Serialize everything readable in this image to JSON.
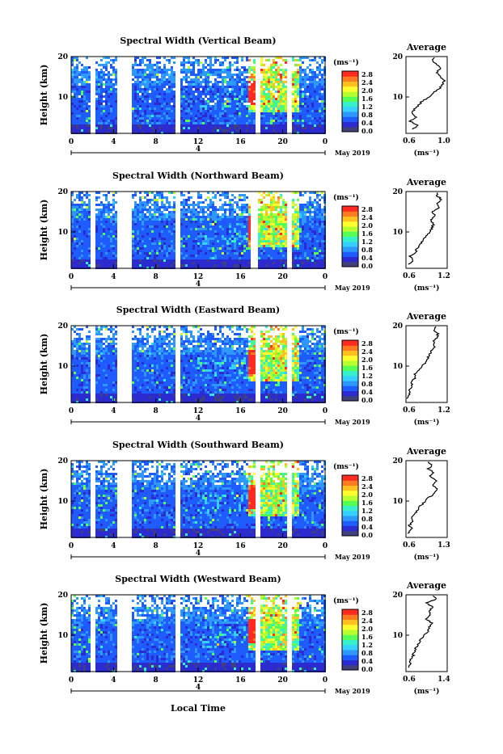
{
  "figure": {
    "xlabel": "Local Time",
    "date_label": "May 2019",
    "day_label": "4"
  },
  "colorbar": {
    "unit": "(ms⁻¹)",
    "ticks": [
      "0.0",
      "0.4",
      "0.8",
      "1.2",
      "1.6",
      "2.0",
      "2.4",
      "2.8"
    ],
    "colors": [
      "#40407a",
      "#2b2bd0",
      "#1e5cff",
      "#2e98ff",
      "#35d0ff",
      "#35f0c8",
      "#55ff55",
      "#b8ff30",
      "#ffff30",
      "#ffc020",
      "#ff7a20",
      "#ff2a20"
    ]
  },
  "chart_data": [
    {
      "type": "heatmap",
      "title": "Spectral Width (Vertical Beam)",
      "ylabel": "Height (km)",
      "xlim": [
        0,
        24
      ],
      "ylim": [
        1,
        20
      ],
      "x_ticks": [
        "0",
        "4",
        "8",
        "12",
        "16",
        "20",
        "0"
      ],
      "y_ticks": [
        "10",
        "20"
      ],
      "value_range": [
        0.0,
        3.0
      ],
      "gaps_hours": [
        2.0,
        4.7,
        5.4,
        10.0,
        17.6,
        20.7
      ],
      "avg_profile": {
        "title": "Average",
        "xlabel": "(ms⁻¹)",
        "xlim": [
          0.6,
          1.0
        ],
        "x_ticks": [
          "0.6",
          "1.0"
        ],
        "y_ticks": [
          "10",
          "20"
        ],
        "heights": [
          2,
          3,
          4,
          5,
          6,
          7,
          8,
          9,
          10,
          11,
          12,
          13,
          14,
          15,
          16,
          17,
          18,
          19,
          20
        ],
        "values": [
          0.66,
          0.72,
          0.64,
          0.7,
          0.66,
          0.68,
          0.72,
          0.76,
          0.82,
          0.86,
          0.92,
          0.95,
          0.97,
          0.94,
          0.9,
          0.93,
          0.9,
          0.86,
          0.88
        ]
      }
    },
    {
      "type": "heatmap",
      "title": "Spectral Width (Northward Beam)",
      "ylabel": "Height (km)",
      "xlim": [
        0,
        24
      ],
      "ylim": [
        1,
        20
      ],
      "x_ticks": [
        "0",
        "4",
        "8",
        "12",
        "16",
        "20",
        "0"
      ],
      "y_ticks": [
        "10",
        "20"
      ],
      "value_range": [
        0.0,
        3.0
      ],
      "gaps_hours": [
        2.0,
        4.7,
        5.4,
        10.0,
        17.3,
        20.7
      ],
      "avg_profile": {
        "title": "Average",
        "xlabel": "(ms⁻¹)",
        "xlim": [
          0.6,
          1.2
        ],
        "x_ticks": [
          "0.6",
          "1.2"
        ],
        "y_ticks": [
          "10",
          "20"
        ],
        "heights": [
          2,
          3,
          4,
          5,
          6,
          7,
          8,
          9,
          10,
          11,
          12,
          13,
          14,
          15,
          16,
          17,
          18,
          19,
          20
        ],
        "values": [
          0.64,
          0.7,
          0.66,
          0.74,
          0.76,
          0.82,
          0.84,
          0.9,
          0.95,
          0.98,
          1.0,
          0.96,
          1.02,
          0.98,
          1.08,
          1.04,
          1.12,
          1.05,
          1.08
        ]
      }
    },
    {
      "type": "heatmap",
      "title": "Spectral Width (Eastward Beam)",
      "ylabel": "Height (km)",
      "xlim": [
        0,
        24
      ],
      "ylim": [
        1,
        20
      ],
      "x_ticks": [
        "0",
        "4",
        "8",
        "12",
        "16",
        "20",
        "0"
      ],
      "y_ticks": [
        "10",
        "20"
      ],
      "value_range": [
        0.0,
        3.0
      ],
      "gaps_hours": [
        2.0,
        4.7,
        5.4,
        10.0,
        17.6,
        20.7
      ],
      "avg_profile": {
        "title": "Average",
        "xlabel": "(ms⁻¹)",
        "xlim": [
          0.6,
          1.2
        ],
        "x_ticks": [
          "0.6",
          "1.2"
        ],
        "y_ticks": [
          "10",
          "20"
        ],
        "heights": [
          2,
          3,
          4,
          5,
          6,
          7,
          8,
          9,
          10,
          11,
          12,
          13,
          14,
          15,
          16,
          17,
          18,
          19,
          20
        ],
        "values": [
          0.62,
          0.66,
          0.64,
          0.7,
          0.66,
          0.74,
          0.72,
          0.78,
          0.84,
          0.88,
          0.92,
          0.95,
          0.98,
          1.02,
          1.0,
          1.05,
          1.06,
          1.0,
          1.04
        ]
      }
    },
    {
      "type": "heatmap",
      "title": "Spectral Width (Southward Beam)",
      "ylabel": "Height (km)",
      "xlim": [
        0,
        24
      ],
      "ylim": [
        1,
        20
      ],
      "x_ticks": [
        "0",
        "4",
        "8",
        "12",
        "16",
        "20",
        "0"
      ],
      "y_ticks": [
        "10",
        "20"
      ],
      "value_range": [
        0.0,
        3.0
      ],
      "gaps_hours": [
        2.0,
        4.7,
        5.4,
        10.0,
        17.6,
        20.7
      ],
      "avg_profile": {
        "title": "Average",
        "xlabel": "(ms⁻¹)",
        "xlim": [
          0.6,
          1.3
        ],
        "x_ticks": [
          "0.6",
          "1.3"
        ],
        "y_ticks": [
          "10",
          "20"
        ],
        "heights": [
          2,
          3,
          4,
          5,
          6,
          7,
          8,
          9,
          10,
          11,
          12,
          13,
          14,
          15,
          16,
          17,
          18,
          19,
          20
        ],
        "values": [
          0.64,
          0.7,
          0.66,
          0.72,
          0.7,
          0.76,
          0.8,
          0.86,
          0.92,
          1.0,
          1.08,
          1.14,
          1.04,
          1.12,
          1.0,
          1.08,
          0.98,
          1.04,
          0.96
        ]
      }
    },
    {
      "type": "heatmap",
      "title": "Spectral Width (Westward Beam)",
      "ylabel": "Height (km)",
      "xlim": [
        0,
        24
      ],
      "ylim": [
        1,
        20
      ],
      "x_ticks": [
        "0",
        "4",
        "8",
        "12",
        "16",
        "20",
        "0"
      ],
      "y_ticks": [
        "10",
        "20"
      ],
      "value_range": [
        0.0,
        3.0
      ],
      "gaps_hours": [
        2.0,
        4.7,
        5.4,
        10.0,
        17.6,
        20.7
      ],
      "avg_profile": {
        "title": "Average",
        "xlabel": "(ms⁻¹)",
        "xlim": [
          0.6,
          1.4
        ],
        "x_ticks": [
          "0.6",
          "1.4"
        ],
        "y_ticks": [
          "10",
          "20"
        ],
        "heights": [
          2,
          3,
          4,
          5,
          6,
          7,
          8,
          9,
          10,
          11,
          12,
          13,
          14,
          15,
          16,
          17,
          18,
          19,
          20
        ],
        "values": [
          0.66,
          0.7,
          0.68,
          0.74,
          0.76,
          0.8,
          0.84,
          0.88,
          0.96,
          1.02,
          1.06,
          1.1,
          1.0,
          1.08,
          1.04,
          1.12,
          1.0,
          1.2,
          1.08
        ]
      }
    }
  ]
}
